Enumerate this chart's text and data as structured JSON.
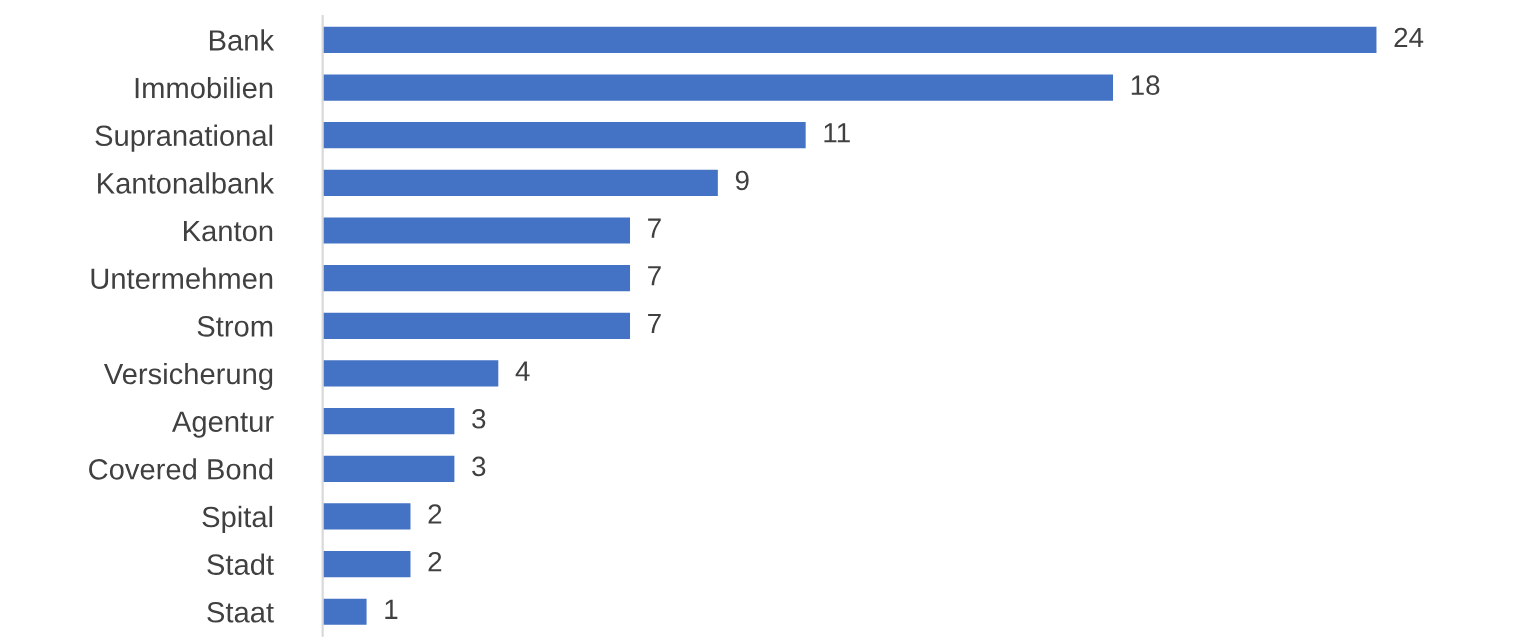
{
  "chart_data": {
    "type": "bar",
    "orientation": "horizontal",
    "categories": [
      "Bank",
      "Immobilien",
      "Supranational",
      "Kantonalbank",
      "Kanton",
      "Untermehmen",
      "Strom",
      "Versicherung",
      "Agentur",
      "Covered Bond",
      "Spital",
      "Stadt",
      "Staat"
    ],
    "values": [
      24,
      18,
      11,
      9,
      7,
      7,
      7,
      4,
      3,
      3,
      2,
      2,
      1
    ],
    "color": "#4472c4",
    "data_labels": true,
    "grid": false,
    "legend": false,
    "tick_labels": "y"
  }
}
